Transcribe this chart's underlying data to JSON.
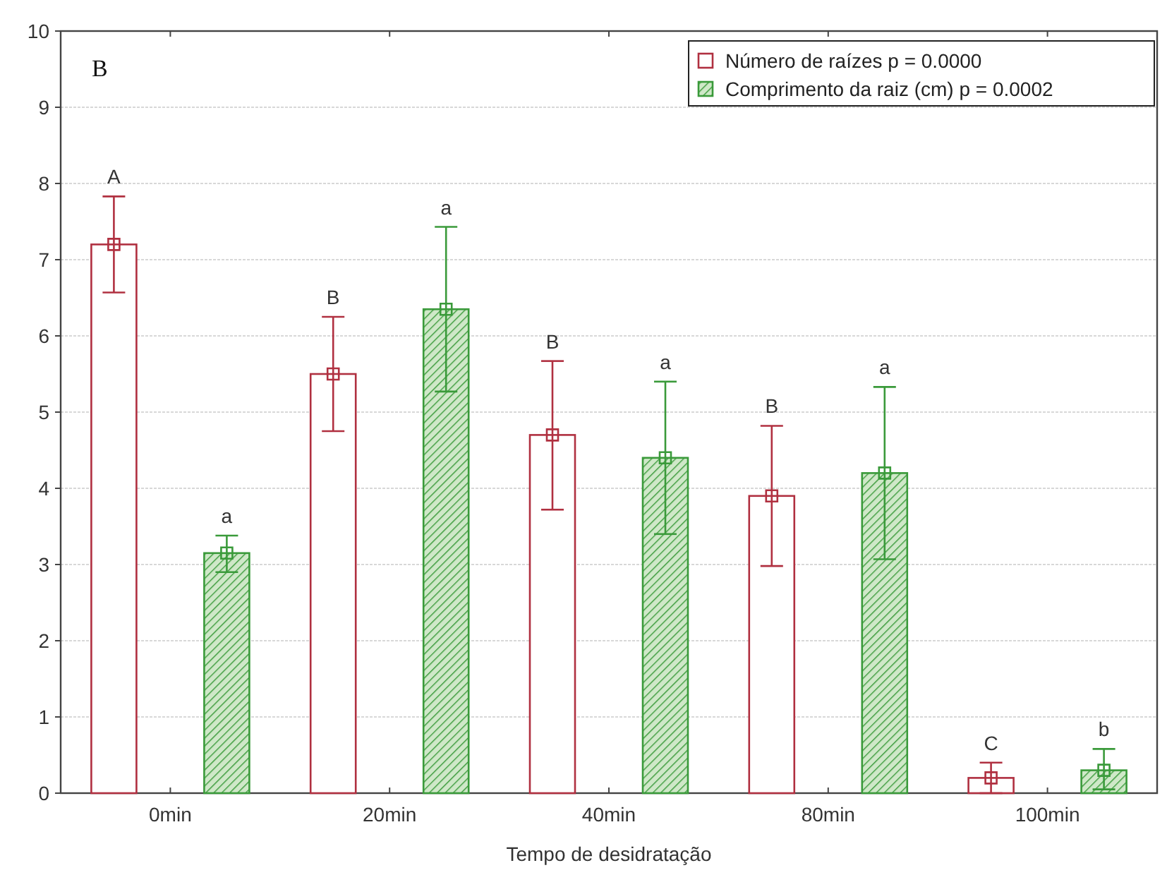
{
  "chart_data": {
    "type": "bar",
    "xlabel": "Tempo de desidratação",
    "categories": [
      "0min",
      "20min",
      "40min",
      "80min",
      "100min"
    ],
    "series": [
      {
        "name": "Número de raízes p = 0.0000",
        "color": "#b03040",
        "values": [
          7.2,
          5.5,
          4.7,
          3.9,
          0.2
        ],
        "errors": [
          [
            6.57,
            7.83
          ],
          [
            4.75,
            6.25
          ],
          [
            3.72,
            5.67
          ],
          [
            2.98,
            4.82
          ],
          [
            0,
            0.4
          ]
        ]
      },
      {
        "name": "Comprimento da raiz (cm) p = 0.0002",
        "color": "#3a9a3a",
        "values": [
          3.15,
          6.35,
          4.4,
          4.2,
          0.3
        ],
        "errors": [
          [
            2.9,
            3.38
          ],
          [
            5.27,
            7.43
          ],
          [
            3.4,
            5.4
          ],
          [
            3.07,
            5.33
          ],
          [
            0.05,
            0.58
          ]
        ]
      }
    ],
    "ylim": [
      0,
      10
    ],
    "yticks": [
      0,
      1,
      2,
      3,
      4,
      5,
      6,
      7,
      8,
      9,
      10
    ],
    "grid": "y",
    "legend": "top right",
    "marker": "square",
    "annotations": [
      "B",
      "A",
      "a",
      "B",
      "a",
      "B",
      "a",
      "B",
      "a",
      "C",
      "b"
    ]
  }
}
